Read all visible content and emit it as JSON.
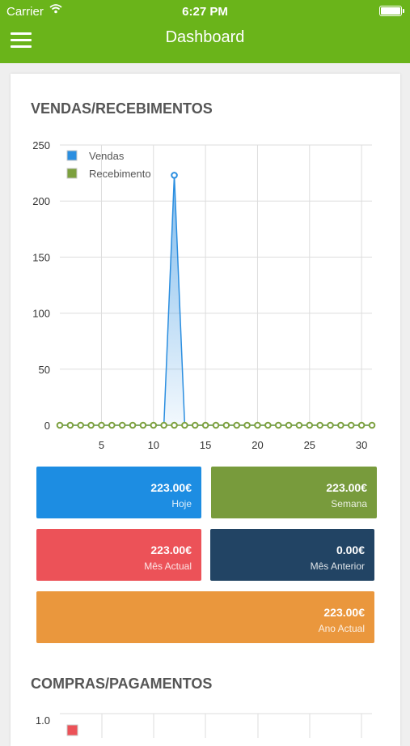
{
  "status_bar": {
    "carrier": "Carrier",
    "time": "6:27 PM",
    "wifi_icon": "wifi-icon",
    "battery_icon": "battery-icon"
  },
  "nav": {
    "title": "Dashboard",
    "menu_icon": "hamburger-menu-icon"
  },
  "sales": {
    "title": "VENDAS/RECEBIMENTOS",
    "legend": [
      {
        "name": "Vendas",
        "color": "#2b8ee0"
      },
      {
        "name": "Recebimento",
        "color": "#7ca03e"
      }
    ]
  },
  "tiles": [
    {
      "amount": "223.00€",
      "label": "Hoje",
      "color": "#1d8de2"
    },
    {
      "amount": "223.00€",
      "label": "Semana",
      "color": "#789b3c"
    },
    {
      "amount": "223.00€",
      "label": "Mês Actual",
      "color": "#ec5258"
    },
    {
      "amount": "0.00€",
      "label": "Mês Anterior",
      "color": "#224464"
    },
    {
      "amount": "223.00€",
      "label": "Ano Actual",
      "color": "#ea973d"
    }
  ],
  "purchases": {
    "title": "COMPRAS/PAGAMENTOS",
    "first_tick": "1.0",
    "legend_color": "#ec5258"
  },
  "chart_data": [
    {
      "type": "line",
      "title": "VENDAS/RECEBIMENTOS",
      "xlabel": "",
      "ylabel": "",
      "xlim": [
        1,
        31
      ],
      "ylim": [
        0,
        250
      ],
      "x_ticks": [
        5,
        10,
        15,
        20,
        25,
        30
      ],
      "y_ticks": [
        0,
        50,
        100,
        150,
        200,
        250
      ],
      "grid": true,
      "legend_position": "top-left",
      "x": [
        1,
        2,
        3,
        4,
        5,
        6,
        7,
        8,
        9,
        10,
        11,
        12,
        13,
        14,
        15,
        16,
        17,
        18,
        19,
        20,
        21,
        22,
        23,
        24,
        25,
        26,
        27,
        28,
        29,
        30,
        31
      ],
      "series": [
        {
          "name": "Vendas",
          "color": "#2b8ee0",
          "area": true,
          "values": [
            0,
            0,
            0,
            0,
            0,
            0,
            0,
            0,
            0,
            0,
            0,
            223,
            0,
            0,
            0,
            0,
            0,
            0,
            0,
            0,
            0,
            0,
            0,
            0,
            0,
            0,
            0,
            0,
            0,
            0,
            0
          ]
        },
        {
          "name": "Recebimento",
          "color": "#7ca03e",
          "area": false,
          "values": [
            0,
            0,
            0,
            0,
            0,
            0,
            0,
            0,
            0,
            0,
            0,
            0,
            0,
            0,
            0,
            0,
            0,
            0,
            0,
            0,
            0,
            0,
            0,
            0,
            0,
            0,
            0,
            0,
            0,
            0,
            0
          ]
        }
      ]
    }
  ]
}
